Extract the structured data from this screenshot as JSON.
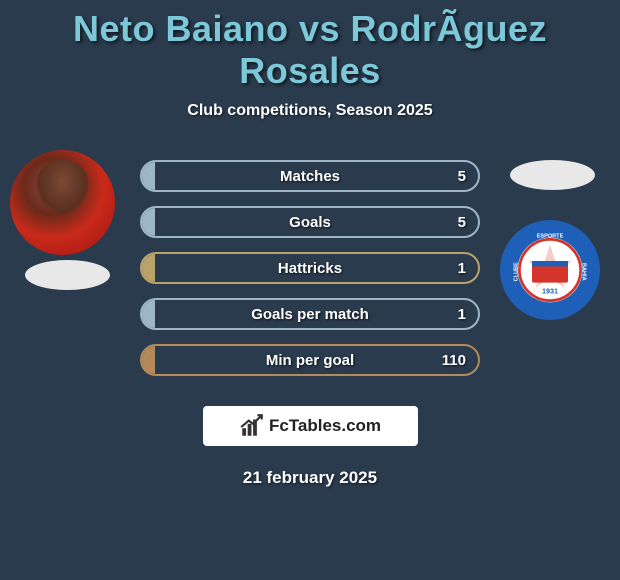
{
  "title": "Neto Baiano vs RodrÃ­guez Rosales",
  "subtitle": "Club competitions, Season 2025",
  "background_color": "#2a3b4d",
  "title_color": "#7cc8d8",
  "bars": [
    {
      "label": "Matches",
      "value": "5",
      "border": "#9fb6c9",
      "fill": "#9fb6c9",
      "fill_pct": 4
    },
    {
      "label": "Goals",
      "value": "5",
      "border": "#9fb6c9",
      "fill": "#9fb6c9",
      "fill_pct": 4
    },
    {
      "label": "Hattricks",
      "value": "1",
      "border": "#b9a36a",
      "fill": "#b9a36a",
      "fill_pct": 4
    },
    {
      "label": "Goals per match",
      "value": "1",
      "border": "#9fb6c9",
      "fill": "#9fb6c9",
      "fill_pct": 4
    },
    {
      "label": "Min per goal",
      "value": "110",
      "border": "#b48a5a",
      "fill": "#b48a5a",
      "fill_pct": 4
    }
  ],
  "footer": {
    "brand": "FcTables.com",
    "date": "21 february 2025"
  },
  "badge": {
    "outer_color": "#1e5fb8",
    "inner_color": "#ffffff",
    "accent_color": "#d4342a"
  }
}
